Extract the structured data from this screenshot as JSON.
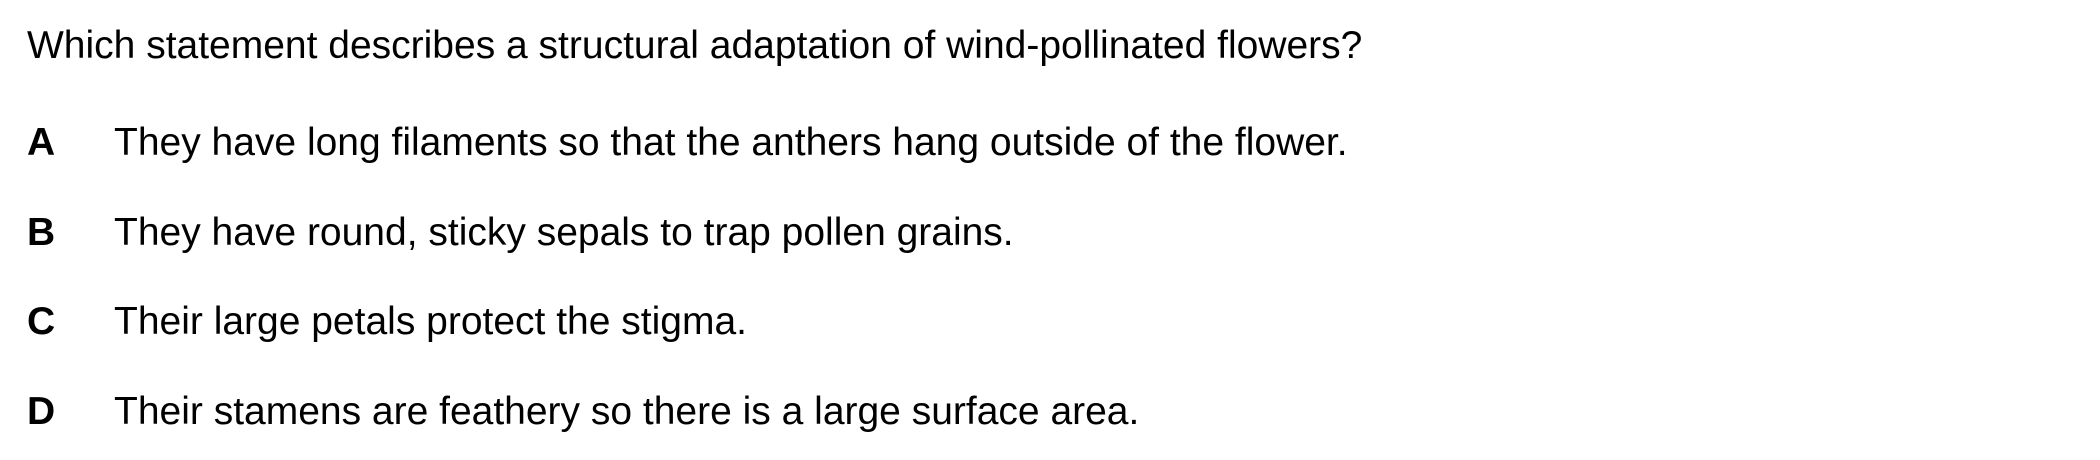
{
  "question": {
    "stem": "Which statement describes a structural adaptation of wind-pollinated flowers?",
    "options": [
      {
        "letter": "A",
        "text": "They have long filaments so that the anthers hang outside of the flower."
      },
      {
        "letter": "B",
        "text": "They have round, sticky sepals to trap pollen grains."
      },
      {
        "letter": "C",
        "text": "Their large petals protect the stigma."
      },
      {
        "letter": "D",
        "text": "Their stamens are feathery so there is a large surface area."
      }
    ]
  }
}
